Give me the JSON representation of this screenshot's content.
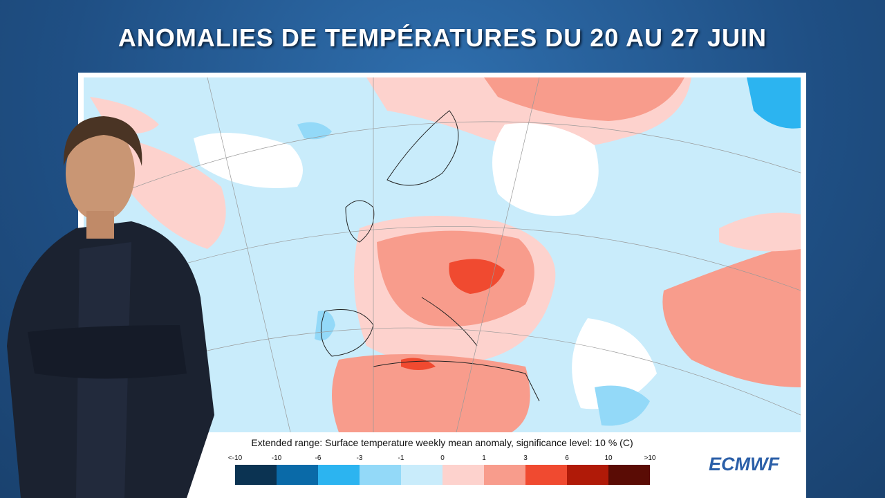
{
  "header": {
    "title": "ANOMALIES DE TEMPÉRATURES DU 20 AU 27 JUIN"
  },
  "legend": {
    "caption": "Extended range: Surface temperature weekly mean anomaly, significance level: 10 % (C)",
    "labels": [
      "<-10",
      "-10",
      "-6",
      "-3",
      "-1",
      "0",
      "1",
      "3",
      "6",
      "10",
      ">10"
    ],
    "colors": [
      "#0b3352",
      "#0a6aa8",
      "#2cb4f0",
      "#93d9f8",
      "#c9ecfb",
      "#fdd2cd",
      "#f89c8c",
      "#f04a30",
      "#b01a08",
      "#5a0c05"
    ]
  },
  "logo": {
    "text": "ECMWF"
  }
}
